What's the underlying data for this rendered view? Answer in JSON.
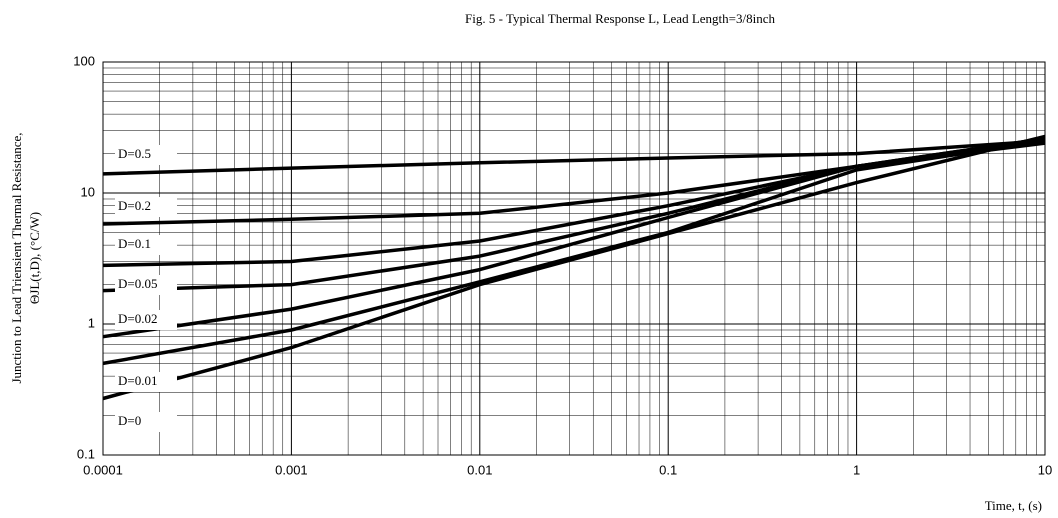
{
  "chart_data": {
    "type": "line",
    "title": "Fig. 5 - Typical Thermal Response L, Lead Length=3/8inch",
    "y_label": [
      "Junction to Lead Triensient Thermal Resistance,",
      "ΘJL(t,D),  (°C/W)"
    ],
    "x_label": "Time, t, (s)",
    "x": [
      0.0001,
      0.001,
      0.01,
      0.1,
      1,
      10
    ],
    "xscale": "log",
    "yscale": "log",
    "xlim": [
      0.0001,
      10
    ],
    "ylim": [
      0.1,
      100
    ],
    "xticks": [
      0.0001,
      0.001,
      0.01,
      0.1,
      1,
      10
    ],
    "yticks": [
      0.1,
      1,
      10,
      100
    ],
    "grid": true,
    "minor_grid": true,
    "series": [
      {
        "name": "D=0.5",
        "color": "#000000",
        "values": [
          14,
          15.5,
          17,
          18.5,
          20,
          25
        ]
      },
      {
        "name": "D=0.2",
        "color": "#000000",
        "values": [
          5.8,
          6.3,
          7,
          10,
          16,
          26
        ]
      },
      {
        "name": "D=0.1",
        "color": "#000000",
        "values": [
          2.8,
          3,
          4.3,
          8,
          16,
          26
        ]
      },
      {
        "name": "D=0.05",
        "color": "#000000",
        "values": [
          1.8,
          2,
          3.3,
          7,
          16,
          25
        ]
      },
      {
        "name": "D=0.02",
        "color": "#000000",
        "values": [
          0.8,
          1.3,
          2.6,
          6.5,
          16,
          24
        ]
      },
      {
        "name": "D=0.01",
        "color": "#000000",
        "values": [
          0.5,
          0.9,
          2.1,
          5,
          15,
          25
        ]
      },
      {
        "name": "D=0",
        "color": "#000000",
        "values": [
          0.27,
          0.66,
          2,
          4.9,
          12,
          27
        ]
      }
    ]
  }
}
